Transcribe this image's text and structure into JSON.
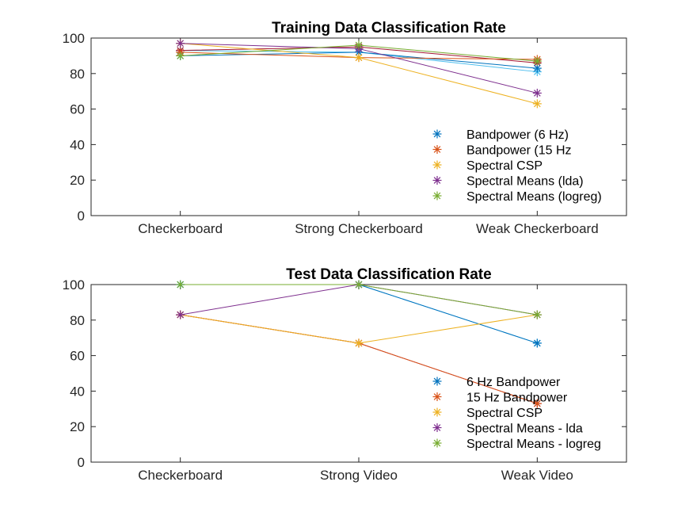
{
  "chart_data": [
    {
      "type": "line",
      "title": "Training Data Classification Rate",
      "xlabel": "",
      "ylabel": "",
      "categories": [
        "Checkerboard",
        "Strong Checkerboard",
        "Weak Checkerboard"
      ],
      "ylim": [
        0,
        100
      ],
      "yticks": [
        0,
        20,
        40,
        60,
        80,
        100
      ],
      "grid": false,
      "legend_position": "bottom-right",
      "series": [
        {
          "name": "Bandpower (6 Hz)",
          "color": "#0072BD",
          "values": [
            90,
            92,
            83
          ]
        },
        {
          "name": "Bandpower (15 Hz",
          "color": "#D95319",
          "values": [
            92,
            89,
            88
          ]
        },
        {
          "name": "Spectral CSP",
          "color": "#EDB120",
          "values": [
            97,
            89,
            63
          ]
        },
        {
          "name": "Spectral Means (lda)",
          "color": "#7E2F8E",
          "values": [
            97,
            94,
            69
          ]
        },
        {
          "name": "Spectral Means (logreg)",
          "color": "#77AC30",
          "values": [
            90,
            96,
            87
          ]
        }
      ],
      "extra_lines": [
        {
          "color": "#4DBEEE",
          "values": [
            93,
            92,
            81
          ]
        },
        {
          "color": "#A2142F",
          "values": [
            93,
            95,
            86
          ]
        }
      ]
    },
    {
      "type": "line",
      "title": "Test Data Classification Rate",
      "xlabel": "",
      "ylabel": "",
      "categories": [
        "Checkerboard",
        "Strong Video",
        "Weak Video"
      ],
      "ylim": [
        0,
        100
      ],
      "yticks": [
        0,
        20,
        40,
        60,
        80,
        100
      ],
      "grid": false,
      "legend_position": "bottom-right",
      "series": [
        {
          "name": "6 Hz Bandpower",
          "color": "#0072BD",
          "values": [
            100,
            100,
            67
          ]
        },
        {
          "name": "15 Hz Bandpower",
          "color": "#D95319",
          "values": [
            83,
            67,
            33
          ]
        },
        {
          "name": "Spectral CSP",
          "color": "#EDB120",
          "values": [
            83,
            67,
            83
          ]
        },
        {
          "name": "Spectral Means - lda",
          "color": "#7E2F8E",
          "values": [
            83,
            100,
            83
          ]
        },
        {
          "name": "Spectral Means - logreg",
          "color": "#77AC30",
          "values": [
            100,
            100,
            83
          ]
        }
      ],
      "extra_lines": [
        {
          "color": "#4DBEEE",
          "values": [
            100,
            100,
            67
          ]
        },
        {
          "color": "#A2142F",
          "values": [
            83,
            67,
            33
          ]
        }
      ]
    }
  ]
}
